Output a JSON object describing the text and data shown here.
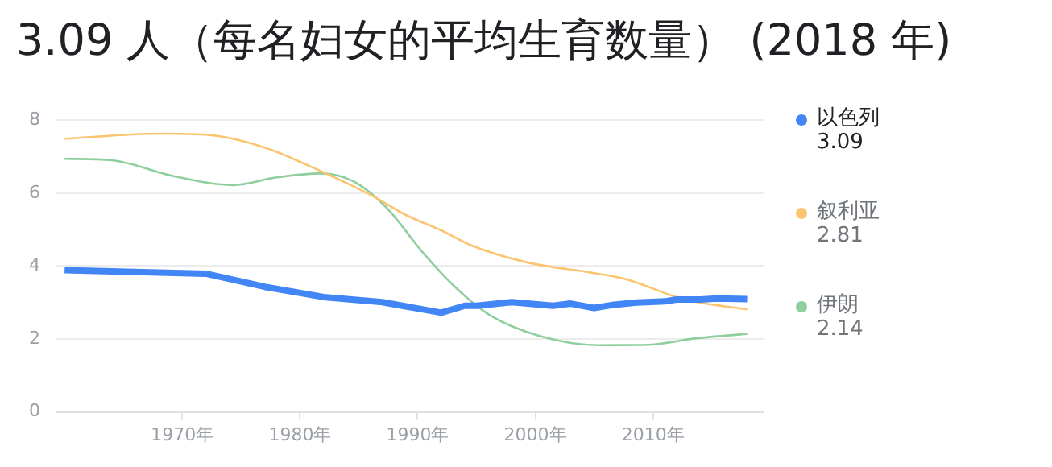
{
  "chart_data": {
    "type": "line",
    "title": "3.09 人（每名妇女的平均生育数量） (2018 年)",
    "xlim": [
      1959.3,
      2019.4
    ],
    "ylim": [
      0,
      8
    ],
    "xticks": [
      {
        "value": 1970,
        "label": "1970年"
      },
      {
        "value": 1980,
        "label": "1980年"
      },
      {
        "value": 1990,
        "label": "1990年"
      },
      {
        "value": 2000,
        "label": "2000年"
      },
      {
        "value": 2010,
        "label": "2010年"
      }
    ],
    "yticks": [
      0,
      2,
      4,
      6,
      8
    ],
    "grid": "y",
    "legend": "right",
    "annotations": [
      "3.09",
      "2.81",
      "2.14"
    ],
    "series": [
      {
        "name": "以色列",
        "color": "#4285f4",
        "x": [
          1960,
          1972,
          1977,
          1982,
          1987,
          1992,
          1994,
          1995,
          1998,
          2001.5,
          2003,
          2005,
          2006.7,
          2008.6,
          2009.5,
          2011,
          2012,
          2014,
          2015.5,
          2018
        ],
        "values": [
          3.89,
          3.79,
          3.43,
          3.15,
          3.01,
          2.72,
          2.91,
          2.91,
          3.01,
          2.91,
          2.97,
          2.85,
          2.94,
          3.0,
          3.01,
          3.03,
          3.08,
          3.08,
          3.11,
          3.09
        ]
      },
      {
        "name": "叙利亚",
        "color": "#fbc46e",
        "x": [
          1960,
          1968,
          1972,
          1977,
          1981.7,
          1986.3,
          1989,
          1992,
          1994.6,
          1999.3,
          2004.9,
          2007.7,
          2012.7,
          2018
        ],
        "values": [
          7.49,
          7.63,
          7.6,
          7.25,
          6.61,
          5.9,
          5.4,
          4.98,
          4.56,
          4.1,
          3.81,
          3.64,
          3.08,
          2.81
        ]
      },
      {
        "name": "伊朗",
        "color": "#8fce9e",
        "x": [
          1960,
          1964,
          1969.2,
          1974.3,
          1978,
          1981.7,
          1984.5,
          1987.3,
          1990.5,
          1993.3,
          1996.1,
          2000.3,
          2005.4,
          2009.5,
          2013.7,
          2018
        ],
        "values": [
          6.94,
          6.9,
          6.47,
          6.22,
          6.43,
          6.54,
          6.33,
          5.62,
          4.35,
          3.39,
          2.66,
          2.09,
          1.83,
          1.84,
          2.02,
          2.14
        ]
      }
    ]
  }
}
